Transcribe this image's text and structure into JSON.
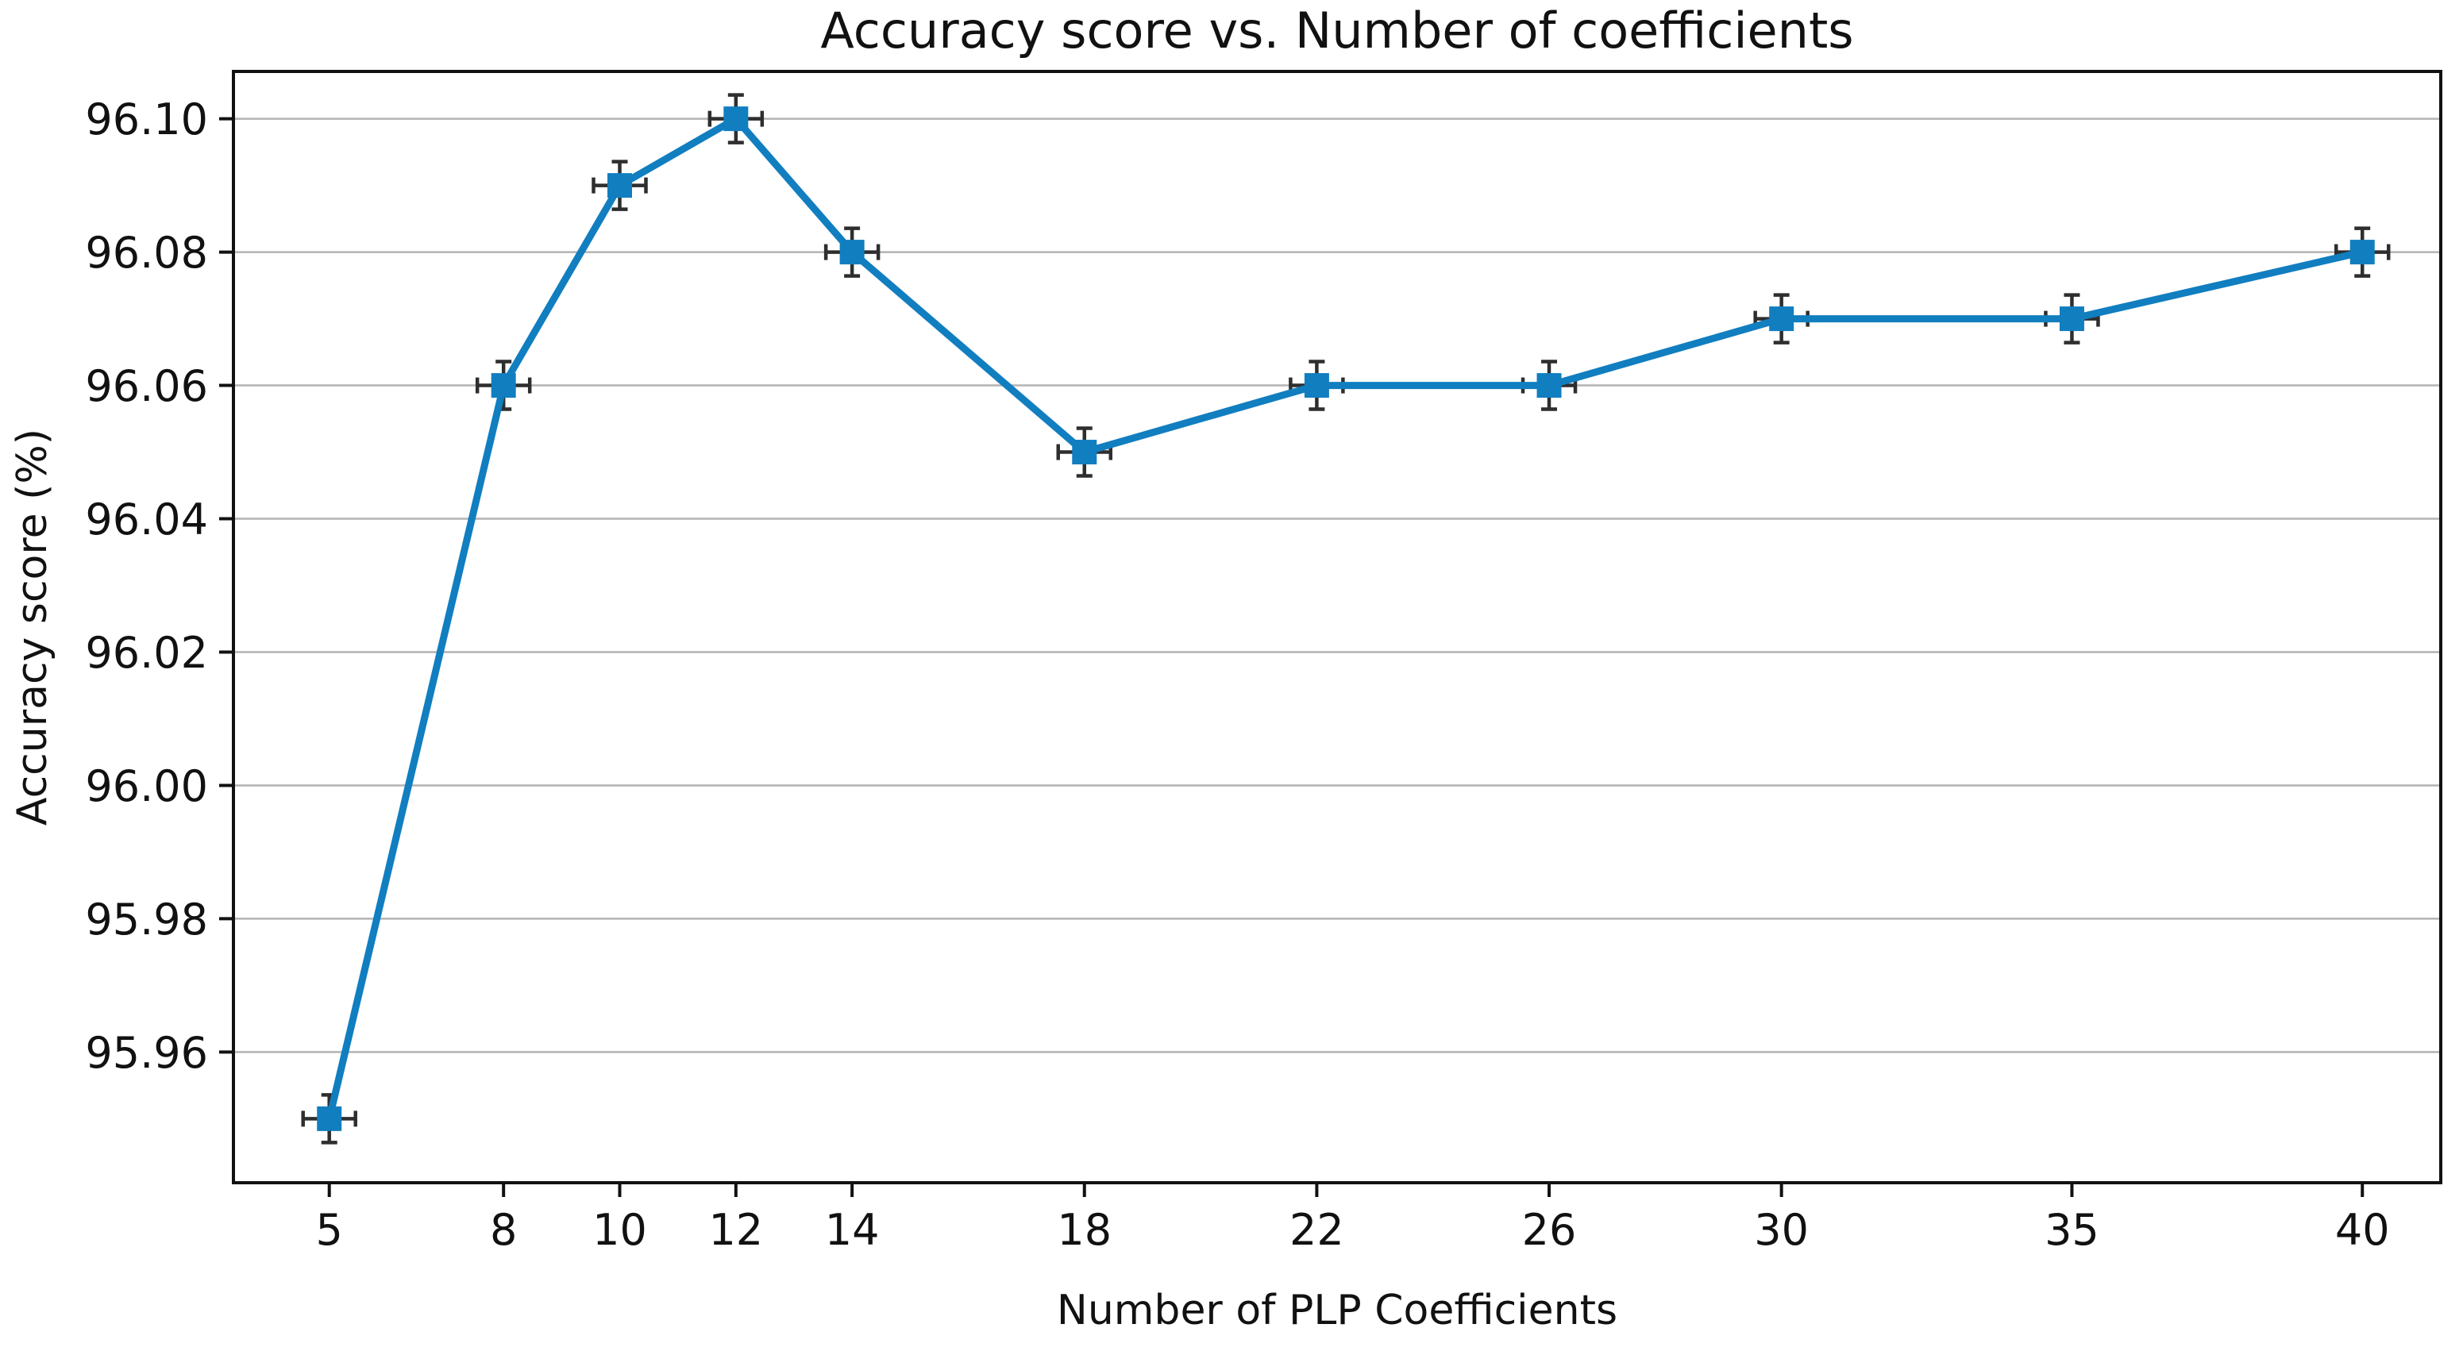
{
  "figure": {
    "background": "#ffffff"
  },
  "chart_data": {
    "type": "line",
    "title": "Accuracy score vs. Number of coefficients",
    "xlabel": "Number of PLP Coefficients",
    "ylabel": "Accuracy score (%)",
    "x": [
      5,
      8,
      10,
      12,
      14,
      18,
      22,
      26,
      30,
      35,
      40
    ],
    "series": [
      {
        "name": "Accuracy score",
        "values": [
          95.95,
          96.06,
          96.09,
          96.1,
          96.08,
          96.05,
          96.06,
          96.06,
          96.07,
          96.07,
          96.08
        ]
      }
    ],
    "xticks": [
      5,
      8,
      10,
      12,
      14,
      18,
      22,
      26,
      30,
      35,
      40
    ],
    "xtick_labels": [
      "5",
      "8",
      "10",
      "12",
      "14",
      "18",
      "22",
      "26",
      "30",
      "35",
      "40"
    ],
    "yticks": [
      95.96,
      95.98,
      96.0,
      96.02,
      96.04,
      96.06,
      96.08,
      96.1
    ],
    "ytick_labels": [
      "95.96",
      "95.98",
      "96.00",
      "96.02",
      "96.04",
      "96.06",
      "96.08",
      "96.10"
    ],
    "xlim": [
      3.35,
      41.35
    ],
    "ylim": [
      95.9404,
      96.1071
    ],
    "grid": "horizontal-only",
    "legend_position": "none",
    "line_color": "#117ec0",
    "marker": "square",
    "marker_color": "#117ec0",
    "error_bars": true,
    "error_bar_color": "#2e2e2e",
    "grid_color": "#b3b3b3",
    "axis_color": "#111111",
    "text_color": "#111111"
  }
}
